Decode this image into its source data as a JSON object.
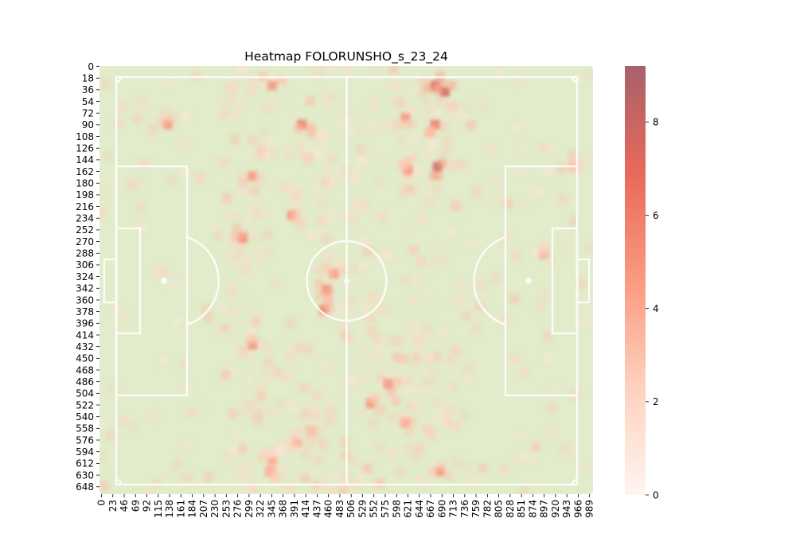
{
  "chart_data": {
    "type": "heatmap",
    "title": "Heatmap FOLORUNSHO_s_23_24",
    "x_ticks": [
      "0",
      "23",
      "46",
      "69",
      "92",
      "115",
      "138",
      "161",
      "184",
      "207",
      "230",
      "253",
      "276",
      "299",
      "322",
      "345",
      "368",
      "391",
      "414",
      "437",
      "460",
      "483",
      "506",
      "529",
      "552",
      "575",
      "598",
      "621",
      "644",
      "667",
      "690",
      "713",
      "736",
      "759",
      "782",
      "805",
      "828",
      "851",
      "874",
      "897",
      "920",
      "943",
      "966",
      "989"
    ],
    "y_ticks": [
      "0",
      "18",
      "36",
      "54",
      "72",
      "90",
      "108",
      "126",
      "144",
      "162",
      "180",
      "198",
      "216",
      "234",
      "252",
      "270",
      "288",
      "306",
      "324",
      "342",
      "360",
      "378",
      "396",
      "414",
      "432",
      "450",
      "468",
      "486",
      "504",
      "522",
      "540",
      "558",
      "576",
      "594",
      "612",
      "630",
      "648"
    ],
    "xlim": [
      0,
      1000
    ],
    "ylim": [
      0,
      660
    ],
    "colorbar": {
      "ticks": [
        "0",
        "2",
        "4",
        "6",
        "8"
      ],
      "min": 0,
      "max": 9.2
    },
    "pitch_color": "#e2ebca",
    "line_color": "#ffffff",
    "color_scale": [
      "#fff5f0",
      "#fdd2bf",
      "#fb9a80",
      "#e8695a",
      "#a8616a"
    ],
    "hotspots": [
      {
        "x": 350,
        "y": 30,
        "v": 6
      },
      {
        "x": 680,
        "y": 30,
        "v": 8
      },
      {
        "x": 700,
        "y": 40,
        "v": 8
      },
      {
        "x": 620,
        "y": 80,
        "v": 5
      },
      {
        "x": 680,
        "y": 90,
        "v": 6
      },
      {
        "x": 410,
        "y": 90,
        "v": 6
      },
      {
        "x": 138,
        "y": 90,
        "v": 5
      },
      {
        "x": 685,
        "y": 155,
        "v": 8
      },
      {
        "x": 625,
        "y": 160,
        "v": 5
      },
      {
        "x": 310,
        "y": 170,
        "v": 5
      },
      {
        "x": 390,
        "y": 230,
        "v": 5
      },
      {
        "x": 290,
        "y": 265,
        "v": 6
      },
      {
        "x": 475,
        "y": 320,
        "v": 5
      },
      {
        "x": 460,
        "y": 345,
        "v": 6
      },
      {
        "x": 455,
        "y": 375,
        "v": 6
      },
      {
        "x": 310,
        "y": 430,
        "v": 5
      },
      {
        "x": 585,
        "y": 490,
        "v": 6
      },
      {
        "x": 550,
        "y": 520,
        "v": 5
      },
      {
        "x": 620,
        "y": 550,
        "v": 5
      },
      {
        "x": 400,
        "y": 580,
        "v": 4
      },
      {
        "x": 350,
        "y": 610,
        "v": 4
      },
      {
        "x": 345,
        "y": 625,
        "v": 5
      },
      {
        "x": 690,
        "y": 625,
        "v": 5
      },
      {
        "x": 960,
        "y": 155,
        "v": 4
      },
      {
        "x": 900,
        "y": 290,
        "v": 4
      }
    ]
  }
}
